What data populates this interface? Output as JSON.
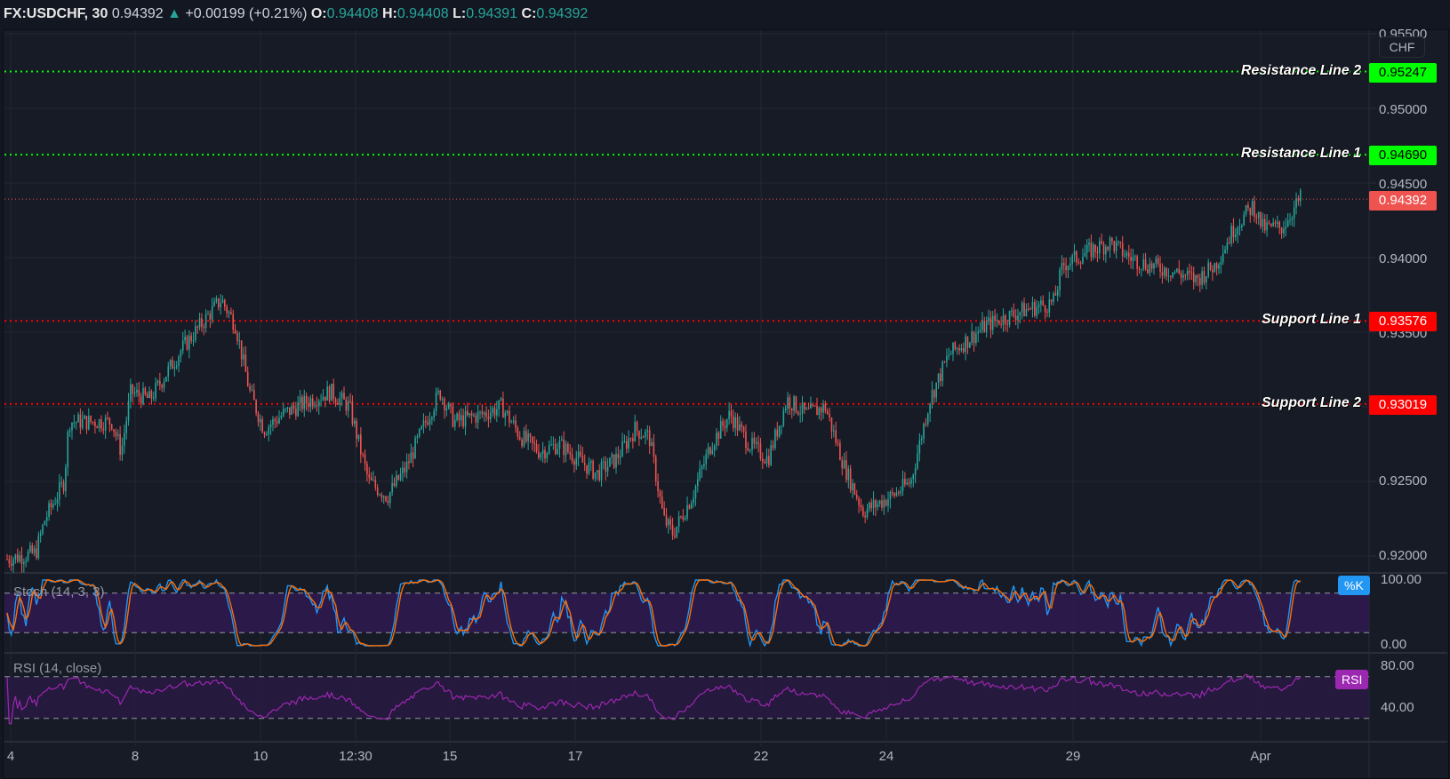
{
  "header": {
    "symbol": "FX:USDCHF, 30",
    "last": "0.94392",
    "change_arrow": "▲",
    "change": "+0.00199 (+0.21%)",
    "o_label": "O:",
    "o": "0.94408",
    "h_label": "H:",
    "h": "0.94408",
    "l_label": "L:",
    "l": "0.94391",
    "c_label": "C:",
    "c": "0.94392"
  },
  "currency_label": "CHF",
  "price_axis": {
    "ticks": [
      "0.95500",
      "0.95000",
      "0.94500",
      "0.94000",
      "0.93500",
      "0.93000",
      "0.92500",
      "0.92000"
    ]
  },
  "levels": [
    {
      "name": "Resistance Line 2",
      "value": "0.95247",
      "color": "#00ff00",
      "text_color": "#000000"
    },
    {
      "name": "Resistance Line 1",
      "value": "0.94690",
      "color": "#00ff00",
      "text_color": "#000000"
    },
    {
      "name": "Support Line 1",
      "value": "0.93576",
      "color": "#ff0000",
      "text_color": "#ffffff"
    },
    {
      "name": "Support Line 2",
      "value": "0.93019",
      "color": "#ff0000",
      "text_color": "#ffffff"
    }
  ],
  "last_price_tag": {
    "value": "0.94392",
    "color": "#ef5350"
  },
  "stoch": {
    "title": "Stoch (14, 3, 3)",
    "badge": "%K",
    "badge_color": "#2196f3",
    "ticks": [
      "100.00",
      "0.00"
    ]
  },
  "rsi": {
    "title": "RSI (14, close)",
    "badge": "RSI",
    "badge_color": "#9c27b0",
    "ticks": [
      "80.00",
      "40.00"
    ]
  },
  "x_axis": {
    "labels": [
      "4",
      "8",
      "10",
      "12:30",
      "15",
      "17",
      "22",
      "24",
      "29",
      "Apr"
    ]
  },
  "chart_data": {
    "type": "candlestick",
    "title": "FX:USDCHF, 30",
    "symbol": "USDCHF",
    "interval": "30 min",
    "ylabel": "CHF",
    "ylim": [
      0.919,
      0.956
    ],
    "y_ticks": [
      0.955,
      0.95,
      0.945,
      0.94,
      0.935,
      0.93,
      0.925,
      0.92
    ],
    "x_tick_labels": [
      "4",
      "8",
      "10",
      "12:30",
      "15",
      "17",
      "22",
      "24",
      "29",
      "Apr"
    ],
    "horizontal_lines": [
      {
        "label": "Resistance Line 2",
        "value": 0.95247,
        "color": "#00ff00",
        "style": "dotted"
      },
      {
        "label": "Resistance Line 1",
        "value": 0.9469,
        "color": "#00ff00",
        "style": "dotted"
      },
      {
        "label": "Support Line 1",
        "value": 0.93576,
        "color": "#ff0000",
        "style": "dotted"
      },
      {
        "label": "Support Line 2",
        "value": 0.93019,
        "color": "#ff0000",
        "style": "dotted"
      }
    ],
    "last_price": 0.94392,
    "ohlc_last": {
      "open": 0.94408,
      "high": 0.94408,
      "low": 0.94391,
      "close": 0.94392
    },
    "change": 0.00199,
    "change_pct": 0.21,
    "price_path_approx": [
      [
        0,
        0.9198
      ],
      [
        30,
        0.9202
      ],
      [
        40,
        0.9225
      ],
      [
        60,
        0.925
      ],
      [
        65,
        0.929
      ],
      [
        110,
        0.929
      ],
      [
        120,
        0.927
      ],
      [
        130,
        0.931
      ],
      [
        150,
        0.9305
      ],
      [
        170,
        0.9325
      ],
      [
        185,
        0.934
      ],
      [
        210,
        0.936
      ],
      [
        225,
        0.9372
      ],
      [
        240,
        0.9355
      ],
      [
        255,
        0.931
      ],
      [
        270,
        0.9285
      ],
      [
        290,
        0.9295
      ],
      [
        320,
        0.9305
      ],
      [
        340,
        0.931
      ],
      [
        360,
        0.93
      ],
      [
        380,
        0.925
      ],
      [
        400,
        0.924
      ],
      [
        420,
        0.926
      ],
      [
        440,
        0.929
      ],
      [
        455,
        0.931
      ],
      [
        470,
        0.929
      ],
      [
        500,
        0.9295
      ],
      [
        520,
        0.93
      ],
      [
        540,
        0.928
      ],
      [
        560,
        0.927
      ],
      [
        580,
        0.9275
      ],
      [
        600,
        0.9265
      ],
      [
        620,
        0.9255
      ],
      [
        640,
        0.9265
      ],
      [
        660,
        0.9285
      ],
      [
        675,
        0.928
      ],
      [
        690,
        0.9225
      ],
      [
        700,
        0.9215
      ],
      [
        720,
        0.924
      ],
      [
        740,
        0.9275
      ],
      [
        760,
        0.9295
      ],
      [
        780,
        0.9275
      ],
      [
        800,
        0.9265
      ],
      [
        820,
        0.9305
      ],
      [
        840,
        0.9295
      ],
      [
        860,
        0.93
      ],
      [
        880,
        0.926
      ],
      [
        900,
        0.923
      ],
      [
        930,
        0.924
      ],
      [
        950,
        0.925
      ],
      [
        970,
        0.9305
      ],
      [
        990,
        0.9335
      ],
      [
        1010,
        0.9345
      ],
      [
        1030,
        0.9355
      ],
      [
        1050,
        0.936
      ],
      [
        1070,
        0.9365
      ],
      [
        1100,
        0.937
      ],
      [
        1110,
        0.9395
      ],
      [
        1140,
        0.9405
      ],
      [
        1160,
        0.941
      ],
      [
        1180,
        0.94
      ],
      [
        1200,
        0.9395
      ],
      [
        1230,
        0.939
      ],
      [
        1250,
        0.9385
      ],
      [
        1270,
        0.9395
      ],
      [
        1290,
        0.942
      ],
      [
        1310,
        0.9435
      ],
      [
        1320,
        0.942
      ],
      [
        1340,
        0.942
      ],
      [
        1360,
        0.944
      ]
    ],
    "indicators": [
      {
        "name": "Stoch (14, 3, 3)",
        "type": "line",
        "series": [
          "%K",
          "%D"
        ],
        "colors": [
          "#2196f3",
          "#ff6d00"
        ],
        "range": [
          0,
          100
        ],
        "bands": [
          20,
          80
        ],
        "last": 95
      },
      {
        "name": "RSI (14, close)",
        "type": "line",
        "color": "#9c27b0",
        "range": [
          20,
          90
        ],
        "bands": [
          30,
          70
        ],
        "last": 68
      }
    ],
    "grid": true
  }
}
